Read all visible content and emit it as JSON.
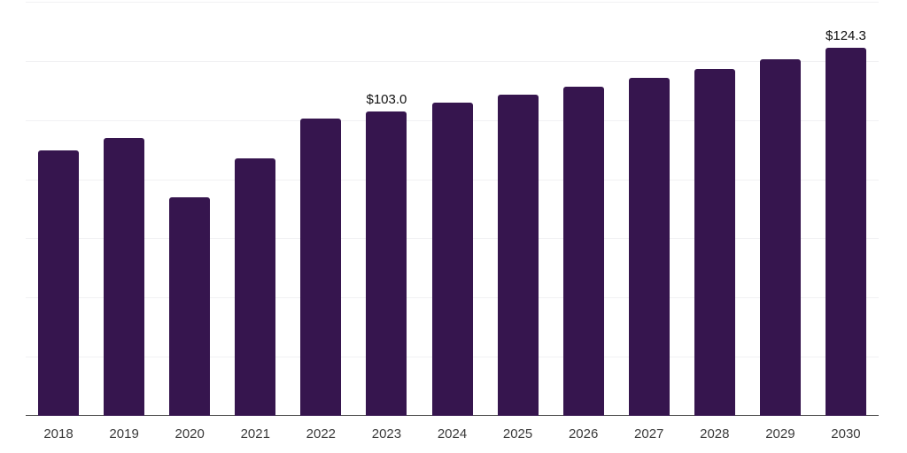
{
  "chart_data": {
    "type": "bar",
    "title": "",
    "xlabel": "",
    "ylabel": "",
    "categories": [
      "2018",
      "2019",
      "2020",
      "2021",
      "2022",
      "2023",
      "2024",
      "2025",
      "2026",
      "2027",
      "2028",
      "2029",
      "2030"
    ],
    "values": [
      89.7,
      94.0,
      73.8,
      87.2,
      100.5,
      103.0,
      106.0,
      108.5,
      111.2,
      114.4,
      117.4,
      120.7,
      124.3
    ],
    "bar_labels": [
      "",
      "",
      "",
      "",
      "",
      "$103.0",
      "",
      "",
      "",
      "",
      "",
      "",
      "$124.3"
    ],
    "ylim": [
      0,
      140
    ],
    "grid_step": 20,
    "grid": "horizontal-only",
    "legend": "none",
    "y_tick_labels_visible": false,
    "colors": {
      "bar": "#36154e",
      "axis_line": "#444444",
      "gridline": "#f1f1f3",
      "tick_label": "#3a3a3a",
      "data_label": "#111111",
      "background": "#ffffff"
    }
  }
}
